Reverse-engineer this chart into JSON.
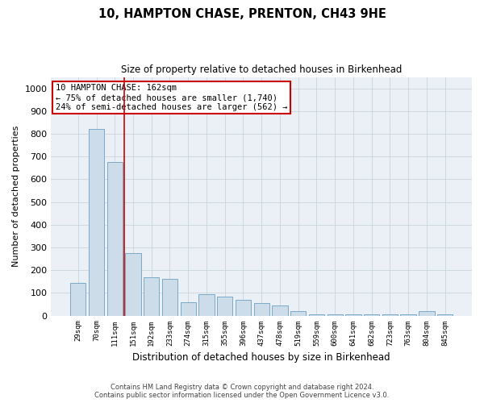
{
  "title": "10, HAMPTON CHASE, PRENTON, CH43 9HE",
  "subtitle": "Size of property relative to detached houses in Birkenhead",
  "xlabel": "Distribution of detached houses by size in Birkenhead",
  "ylabel": "Number of detached properties",
  "categories": [
    "29sqm",
    "70sqm",
    "111sqm",
    "151sqm",
    "192sqm",
    "233sqm",
    "274sqm",
    "315sqm",
    "355sqm",
    "396sqm",
    "437sqm",
    "478sqm",
    "519sqm",
    "559sqm",
    "600sqm",
    "641sqm",
    "682sqm",
    "723sqm",
    "763sqm",
    "804sqm",
    "845sqm"
  ],
  "values": [
    145,
    820,
    675,
    275,
    170,
    160,
    60,
    95,
    85,
    70,
    55,
    45,
    20,
    5,
    5,
    5,
    5,
    5,
    5,
    20,
    5
  ],
  "bar_color": "#ccdce9",
  "bar_edge_color": "#7aaac8",
  "annotation_text": "10 HAMPTON CHASE: 162sqm\n← 75% of detached houses are smaller (1,740)\n24% of semi-detached houses are larger (562) →",
  "annotation_box_color": "#ffffff",
  "annotation_box_edge": "#cc0000",
  "vline_color": "#cc0000",
  "vline_x": 2.5,
  "ylim": [
    0,
    1050
  ],
  "yticks": [
    0,
    100,
    200,
    300,
    400,
    500,
    600,
    700,
    800,
    900,
    1000
  ],
  "footer_line1": "Contains HM Land Registry data © Crown copyright and database right 2024.",
  "footer_line2": "Contains public sector information licensed under the Open Government Licence v3.0.",
  "background_color": "#ffffff",
  "plot_bg_color": "#eaf0f6",
  "grid_color": "#c8d4de"
}
